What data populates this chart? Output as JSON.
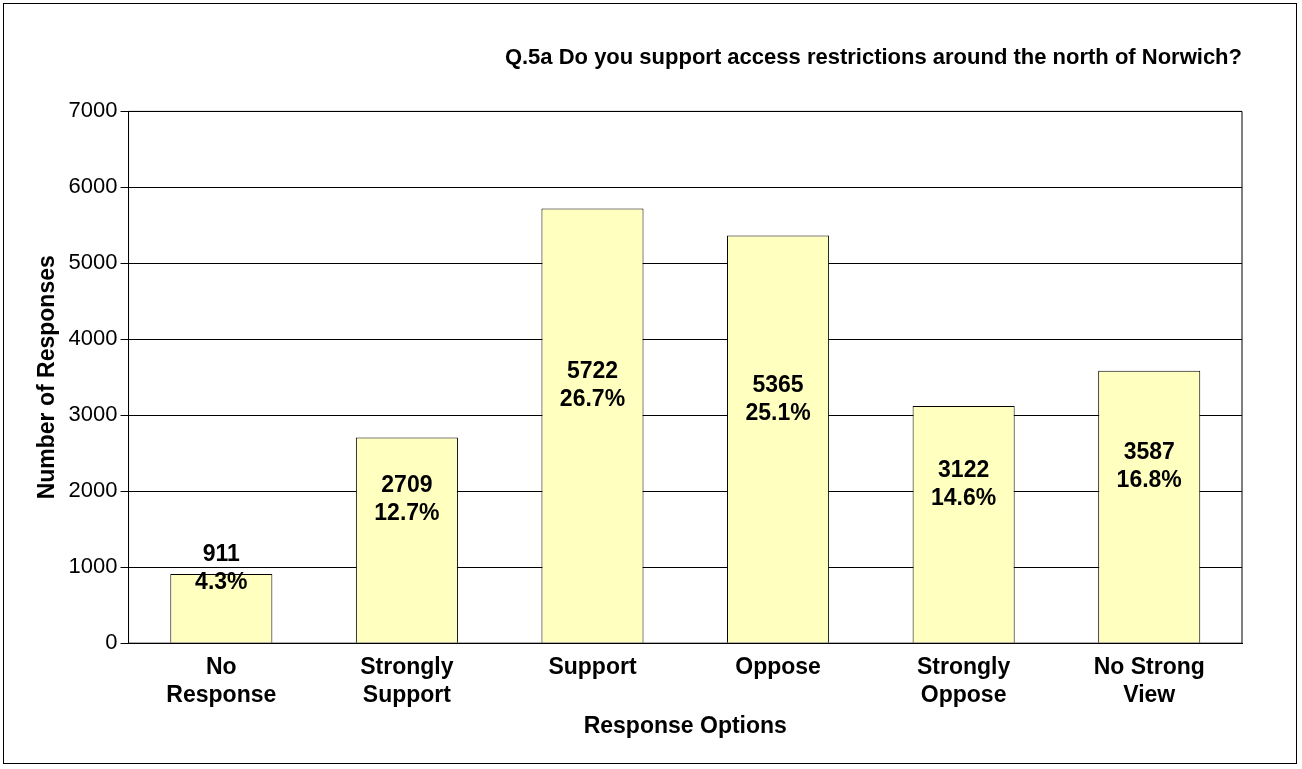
{
  "chart_data": {
    "type": "bar",
    "title": "Q.5a Do you support access restrictions around the north of Norwich?",
    "xlabel": "Response Options",
    "ylabel": "Number of Responses",
    "categories": [
      "No Response",
      "Strongly Support",
      "Support",
      "Oppose",
      "Strongly Oppose",
      "No Strong View"
    ],
    "values": [
      911,
      2709,
      5722,
      5365,
      3122,
      3587
    ],
    "value_labels": [
      "911\n4.3%",
      "2709\n12.7%",
      "5722\n26.7%",
      "5365\n25.1%",
      "3122\n14.6%",
      "3587\n16.8%"
    ],
    "color": "#ffffc0",
    "ylim": [
      0,
      7000
    ],
    "yticks": [
      0,
      1000,
      2000,
      3000,
      4000,
      5000,
      6000,
      7000
    ],
    "grid": "y",
    "legend": false
  }
}
